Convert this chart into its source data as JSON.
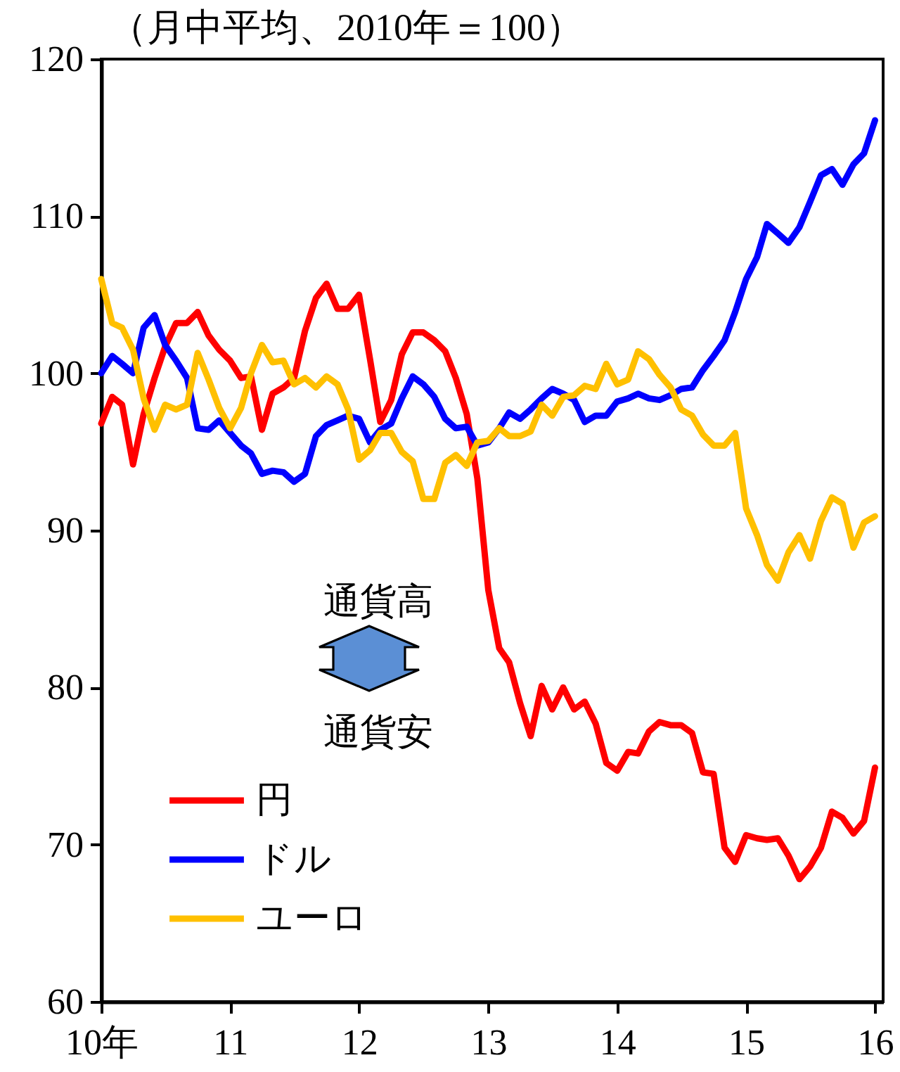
{
  "chart_data": {
    "type": "line",
    "ylabel": "（月中平均、2010年＝100）",
    "x": [
      "2010-01",
      "2010-02",
      "2010-03",
      "2010-04",
      "2010-05",
      "2010-06",
      "2010-07",
      "2010-08",
      "2010-09",
      "2010-10",
      "2010-11",
      "2010-12",
      "2011-01",
      "2011-02",
      "2011-03",
      "2011-04",
      "2011-05",
      "2011-06",
      "2011-07",
      "2011-08",
      "2011-09",
      "2011-10",
      "2011-11",
      "2011-12",
      "2012-01",
      "2012-02",
      "2012-03",
      "2012-04",
      "2012-05",
      "2012-06",
      "2012-07",
      "2012-08",
      "2012-09",
      "2012-10",
      "2012-11",
      "2012-12",
      "2013-01",
      "2013-02",
      "2013-03",
      "2013-04",
      "2013-05",
      "2013-06",
      "2013-07",
      "2013-08",
      "2013-09",
      "2013-10",
      "2013-11",
      "2013-12",
      "2014-01",
      "2014-02",
      "2014-03",
      "2014-04",
      "2014-05",
      "2014-06",
      "2014-07",
      "2014-08",
      "2014-09",
      "2014-10",
      "2014-11",
      "2014-12",
      "2015-01",
      "2015-02",
      "2015-03",
      "2015-04",
      "2015-05",
      "2015-06",
      "2015-07",
      "2015-08",
      "2015-09",
      "2015-10",
      "2015-11",
      "2015-12",
      "2016-01"
    ],
    "series": [
      {
        "name": "円",
        "color": "#ff0000",
        "values": [
          96.8,
          98.5,
          98.0,
          94.2,
          97.4,
          99.7,
          101.7,
          103.2,
          103.2,
          103.9,
          102.4,
          101.5,
          100.8,
          99.7,
          99.8,
          96.4,
          98.7,
          99.1,
          99.7,
          102.7,
          104.8,
          105.7,
          104.1,
          104.1,
          105.0,
          100.9,
          96.9,
          98.3,
          101.2,
          102.6,
          102.6,
          102.1,
          101.4,
          99.7,
          97.4,
          93.3,
          86.2,
          82.5,
          81.6,
          79.0,
          76.9,
          80.1,
          78.6,
          80.0,
          78.6,
          79.1,
          77.7,
          75.2,
          74.7,
          75.9,
          75.8,
          77.2,
          77.8,
          77.6,
          77.6,
          77.1,
          74.6,
          74.5,
          69.8,
          68.9,
          70.6,
          70.4,
          70.3,
          70.4,
          69.3,
          67.8,
          68.6,
          69.8,
          72.1,
          71.7,
          70.7,
          71.5,
          74.9
        ]
      },
      {
        "name": "ドル",
        "color": "#0000ff",
        "values": [
          100.0,
          101.1,
          100.6,
          100.0,
          102.9,
          103.7,
          101.8,
          100.8,
          99.7,
          96.5,
          96.4,
          97.0,
          96.2,
          95.4,
          94.9,
          93.6,
          93.8,
          93.7,
          93.1,
          93.6,
          96.0,
          96.7,
          97.0,
          97.3,
          97.1,
          95.6,
          96.4,
          96.8,
          98.4,
          99.8,
          99.3,
          98.5,
          97.1,
          96.5,
          96.6,
          95.4,
          95.6,
          96.5,
          97.5,
          97.1,
          97.7,
          98.4,
          99.0,
          98.7,
          98.3,
          96.9,
          97.3,
          97.3,
          98.2,
          98.4,
          98.7,
          98.4,
          98.3,
          98.6,
          99.0,
          99.1,
          100.2,
          101.1,
          102.1,
          103.9,
          106.0,
          107.4,
          109.5,
          108.9,
          108.3,
          109.3,
          110.9,
          112.6,
          113.0,
          112.0,
          113.3,
          114.0,
          116.1
        ]
      },
      {
        "name": "ユーロ",
        "color": "#ffc000",
        "values": [
          106.0,
          103.2,
          102.9,
          101.5,
          98.4,
          96.4,
          98.0,
          97.7,
          98.0,
          101.3,
          99.6,
          97.8,
          96.5,
          97.8,
          100.0,
          101.8,
          100.7,
          100.8,
          99.3,
          99.7,
          99.1,
          99.8,
          99.3,
          97.7,
          94.5,
          95.1,
          96.2,
          96.2,
          95.0,
          94.4,
          92.0,
          92.0,
          94.3,
          94.8,
          94.1,
          95.6,
          95.7,
          96.5,
          96.0,
          96.0,
          96.3,
          98.0,
          97.3,
          98.5,
          98.6,
          99.2,
          99.0,
          100.6,
          99.3,
          99.6,
          101.4,
          100.9,
          99.9,
          99.1,
          97.7,
          97.3,
          96.1,
          95.4,
          95.4,
          96.2,
          91.4,
          89.7,
          87.8,
          86.8,
          88.6,
          89.7,
          88.2,
          90.6,
          92.1,
          91.7,
          88.9,
          90.5,
          90.9
        ]
      }
    ],
    "xlim": [
      "2010-01",
      "2016-01-24"
    ],
    "xticks": [
      {
        "value": "2010-01",
        "label": "10年"
      },
      {
        "value": "2011-01",
        "label": "11"
      },
      {
        "value": "2012-01",
        "label": "12"
      },
      {
        "value": "2013-01",
        "label": "13"
      },
      {
        "value": "2014-01",
        "label": "14"
      },
      {
        "value": "2015-01",
        "label": "15"
      },
      {
        "value": "2016-01",
        "label": "16"
      }
    ],
    "ylim": [
      60,
      120
    ],
    "yticks": [
      60,
      70,
      80,
      90,
      100,
      110,
      120
    ],
    "grid": false,
    "legend": "bottom left",
    "annotations": [
      "通貨高",
      "通貨安"
    ]
  }
}
